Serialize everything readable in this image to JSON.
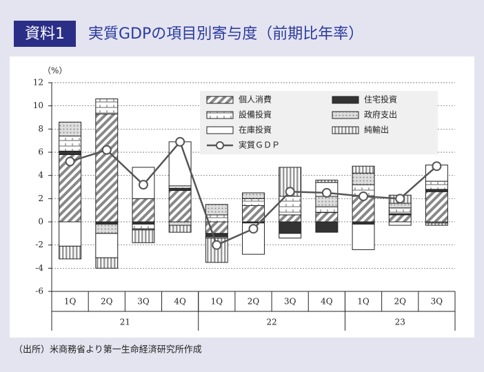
{
  "chart_data": {
    "type": "bar",
    "stacked": true,
    "badge": "資料1",
    "title": "実質GDPの項目別寄与度（前期比年率）",
    "y_label": "（%）",
    "source": "（出所）米商務省より第一生命経済研究所作成",
    "categories": [
      "1Q",
      "2Q",
      "3Q",
      "4Q",
      "1Q",
      "2Q",
      "3Q",
      "4Q",
      "1Q",
      "2Q",
      "3Q"
    ],
    "x_groups": [
      "21",
      "22",
      "23"
    ],
    "ylim": [
      -6,
      12
    ],
    "yticks": [
      -6,
      -4,
      -2,
      0,
      2,
      4,
      6,
      8,
      10,
      12
    ],
    "grid": true,
    "series": [
      {
        "name": "個人消費",
        "color": "#888888",
        "values": [
          5.8,
          9.3,
          2.0,
          2.7,
          -1.0,
          1.4,
          0.6,
          0.8,
          2.2,
          0.6,
          2.6
        ]
      },
      {
        "name": "住宅投資",
        "color": "#333333",
        "values": [
          0.3,
          -0.2,
          -0.2,
          0.2,
          -0.3,
          -0.1,
          -1.0,
          -0.9,
          -0.2,
          0.1,
          0.2
        ]
      },
      {
        "name": "設備投資",
        "color": "#666666",
        "values": [
          1.3,
          1.3,
          -0.4,
          0.2,
          0.6,
          0.6,
          1.6,
          0.5,
          1.0,
          0.5,
          0.7
        ]
      },
      {
        "name": "政府支出",
        "color": "#bbbbbb",
        "values": [
          1.2,
          -0.8,
          -0.1,
          -0.3,
          0.9,
          0.5,
          0.0,
          0.9,
          1.0,
          0.4,
          -0.1
        ]
      },
      {
        "name": "在庫投資",
        "color": "#ffffff",
        "values": [
          -2.1,
          -2.1,
          2.7,
          3.8,
          -0.1,
          -2.7,
          -0.4,
          1.2,
          -2.2,
          -0.3,
          1.4
        ]
      },
      {
        "name": "純輸出",
        "color": "#999999",
        "values": [
          -1.1,
          -0.9,
          -1.1,
          -0.6,
          -2.1,
          0.0,
          2.5,
          0.2,
          0.6,
          0.7,
          -0.2
        ]
      },
      {
        "name": "実質ＧＤＰ",
        "type": "line",
        "color": "#555555",
        "values": [
          5.2,
          6.2,
          3.2,
          6.9,
          -2.0,
          -0.6,
          2.6,
          2.5,
          2.2,
          2.0,
          4.8
        ]
      }
    ]
  }
}
